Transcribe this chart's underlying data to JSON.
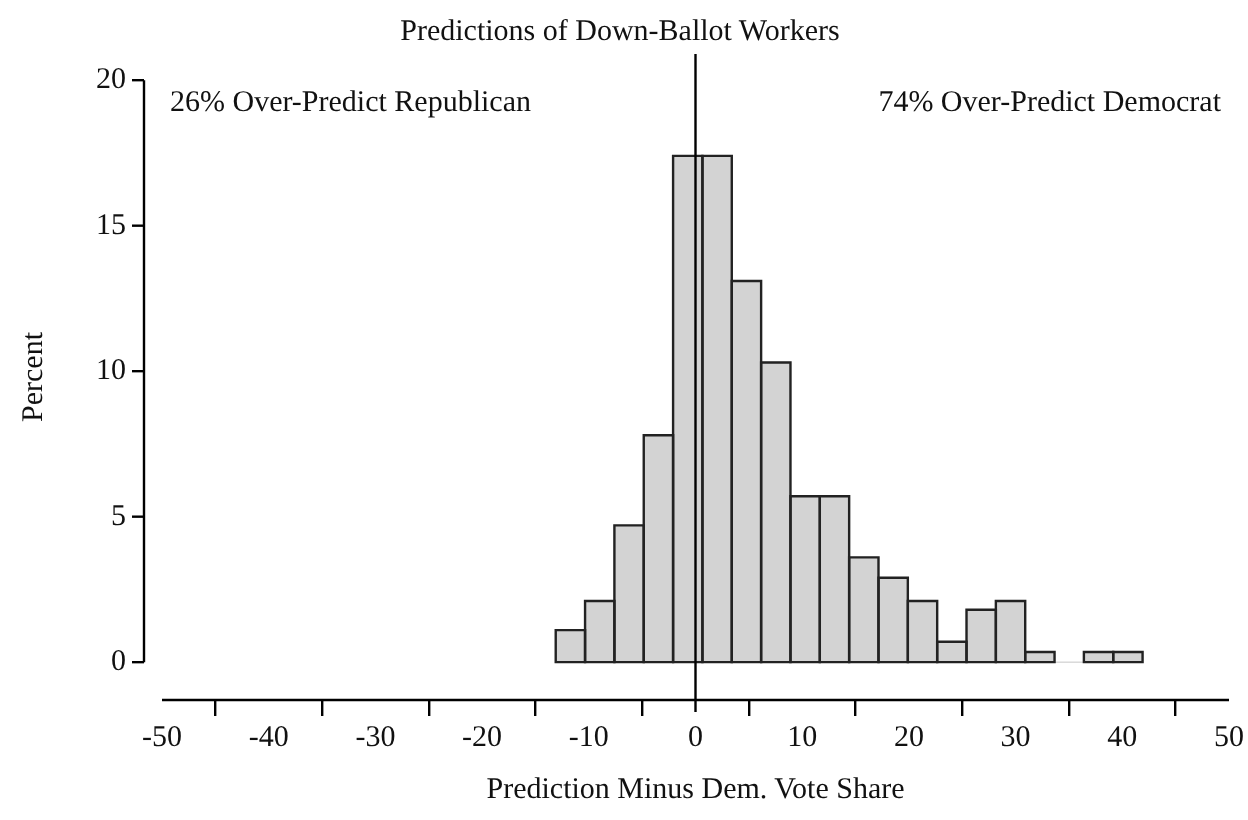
{
  "chart_data": {
    "type": "histogram",
    "title": "Predictions of Down-Ballot Workers",
    "xlabel": "Prediction Minus Dem. Vote Share",
    "ylabel": "Percent",
    "bins": [
      -13.1,
      -10.35,
      -7.6,
      -4.85,
      -2.1,
      0.65,
      3.4,
      6.15,
      8.9,
      11.65,
      14.4,
      17.15,
      19.9,
      22.65,
      25.4,
      28.15,
      30.9,
      33.65,
      36.4,
      39.15,
      41.9
    ],
    "values": [
      1.1,
      2.1,
      4.7,
      7.8,
      17.4,
      17.4,
      13.1,
      10.3,
      5.7,
      5.7,
      3.6,
      2.9,
      2.1,
      0.7,
      1.8,
      2.1,
      0.35,
      0,
      0.35,
      0.35
    ],
    "color": "#d3d3d3",
    "xlim": [
      -50,
      50
    ],
    "xticks": [
      -50,
      -40,
      -30,
      -20,
      -10,
      0,
      10,
      20,
      30,
      40,
      50
    ],
    "ylim": [
      -1.3,
      20.9
    ],
    "yticks": [
      0,
      5,
      10,
      15,
      20
    ],
    "grid": false,
    "ref_lines": [
      {
        "axis": "x",
        "value": 0,
        "color": "#000000"
      }
    ],
    "annotations": [
      "26% Over-Predict Republican",
      "74% Over-Predict Democrat"
    ]
  }
}
